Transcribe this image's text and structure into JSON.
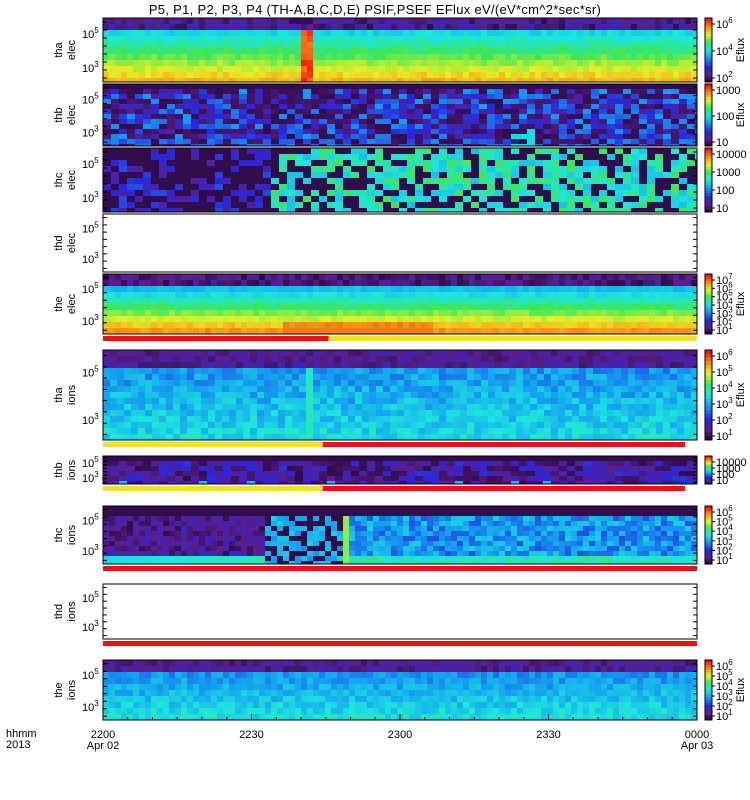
{
  "title": "P5, P1, P2, P3, P4 (TH-A,B,C,D,E) PSIF,PSEF EFlux eV/(eV*cm^2*sec*sr)",
  "footer": {
    "row1": "hhmm",
    "row2": "2013"
  },
  "chart_data": {
    "type": "heatmap",
    "x_ticks": [
      {
        "label": "2200",
        "sub": "Apr 02"
      },
      {
        "label": "2230",
        "sub": ""
      },
      {
        "label": "2300",
        "sub": ""
      },
      {
        "label": "2330",
        "sub": ""
      },
      {
        "label": "0000",
        "sub": "Apr 03"
      }
    ],
    "panels": [
      {
        "ylabel1": "tha",
        "ylabel2": "elec",
        "yticks": [
          "10^5",
          "10^3"
        ],
        "cbar": [
          "10^6",
          "10^4",
          "10^2"
        ],
        "cbar_label": "Eflux",
        "kind": "elec_a",
        "bars": []
      },
      {
        "ylabel1": "thb",
        "ylabel2": "elec",
        "yticks": [
          "10^5",
          "10^3"
        ],
        "cbar": [
          "1000",
          "100",
          "10"
        ],
        "cbar_label": "Eflux",
        "kind": "sparse_b",
        "bars": []
      },
      {
        "ylabel1": "thc",
        "ylabel2": "elec",
        "yticks": [
          "10^5",
          "10^3"
        ],
        "cbar": [
          "10000",
          "1000",
          "100",
          "10"
        ],
        "cbar_label": "",
        "kind": "sparse_c",
        "bars": []
      },
      {
        "ylabel1": "thd",
        "ylabel2": "elec",
        "yticks": [
          "10^5",
          "10^3"
        ],
        "cbar": [],
        "cbar_label": "",
        "kind": "empty",
        "bars": []
      },
      {
        "ylabel1": "the",
        "ylabel2": "elec",
        "yticks": [
          "10^5",
          "10^3"
        ],
        "cbar": [
          "10^7",
          "10^6",
          "10^5",
          "10^4",
          "10^3",
          "10^2",
          "10^1"
        ],
        "cbar_label": "Eflux",
        "kind": "elec_e",
        "bars": [
          [
            "#ee1111",
            0.0,
            0.38
          ],
          [
            "#f0e030",
            0.38,
            1.0
          ]
        ]
      },
      {
        "ylabel1": "tha",
        "ylabel2": "ions",
        "yticks": [
          "10^5",
          "10^3"
        ],
        "cbar": [
          "10^6",
          "10^5",
          "10^4",
          "10^3",
          "10^2",
          "10^1"
        ],
        "cbar_label": "Eflux",
        "kind": "ion_a",
        "bars": [
          [
            "#f0e030",
            0.0,
            0.37
          ],
          [
            "#ee1111",
            0.37,
            0.98
          ]
        ]
      },
      {
        "ylabel1": "thb",
        "ylabel2": "ions",
        "yticks": [
          "10^5",
          "10^3"
        ],
        "cbar": [
          "10000",
          "1000",
          "100",
          "10"
        ],
        "cbar_label": "",
        "kind": "ion_b",
        "bars": [
          [
            "#f0e030",
            0.0,
            0.37
          ],
          [
            "#ee1111",
            0.37,
            0.98
          ]
        ]
      },
      {
        "ylabel1": "thc",
        "ylabel2": "ions",
        "yticks": [
          "10^5",
          "10^3"
        ],
        "cbar": [
          "10^6",
          "10^5",
          "10^4",
          "10^3",
          "10^2",
          "10^1"
        ],
        "cbar_label": "",
        "kind": "ion_c",
        "bars": [
          [
            "#ee1111",
            0.0,
            1.0
          ]
        ]
      },
      {
        "ylabel1": "thd",
        "ylabel2": "ions",
        "yticks": [
          "10^5",
          "10^3"
        ],
        "cbar": [],
        "cbar_label": "",
        "kind": "empty",
        "bars": [
          [
            "#ee1111",
            0.0,
            1.0
          ]
        ]
      },
      {
        "ylabel1": "the",
        "ylabel2": "ions",
        "yticks": [
          "10^5",
          "10^3"
        ],
        "cbar": [
          "10^6",
          "10^5",
          "10^4",
          "10^3",
          "10^2",
          "10^1"
        ],
        "cbar_label": "Eflux",
        "kind": "ion_e",
        "bars": []
      }
    ]
  }
}
